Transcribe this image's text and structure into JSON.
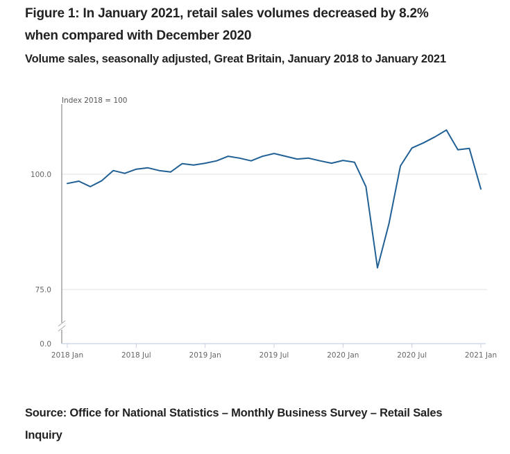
{
  "title": "Figure 1: In January 2021, retail sales volumes decreased by 8.2% when compared with December 2020",
  "subtitle": "Volume sales, seasonally adjusted, Great Britain, January 2018 to January 2021",
  "source": "Source: Office for National Statistics – Monthly Business Survey – Retail Sales Inquiry",
  "chart_data": {
    "type": "line",
    "title": "Figure 1: In January 2021, retail sales volumes decreased by 8.2% when compared with December 2020",
    "subtitle": "Volume sales, seasonally adjusted, Great Britain, January 2018 to January 2021",
    "ylabel": "Index 2018 = 100",
    "xlabel": "",
    "y_axis_break": true,
    "yticks": [
      0.0,
      75.0,
      100.0
    ],
    "ytick_labels": [
      "0.0",
      "75.0",
      "100.0"
    ],
    "ylim_upper_segment": [
      75,
      111
    ],
    "xtick_labels": [
      "2018 Jan",
      "2018 Jul",
      "2019 Jan",
      "2019 Jul",
      "2020 Jan",
      "2020 Jul",
      "2021 Jan"
    ],
    "xtick_month_index": [
      0,
      6,
      12,
      18,
      24,
      30,
      36
    ],
    "grid": "horizontal",
    "legend": "none",
    "line_color": "#206095",
    "series": [
      {
        "name": "Volume sales",
        "x": [
          "2018 Jan",
          "2018 Feb",
          "2018 Mar",
          "2018 Apr",
          "2018 May",
          "2018 Jun",
          "2018 Jul",
          "2018 Aug",
          "2018 Sep",
          "2018 Oct",
          "2018 Nov",
          "2018 Dec",
          "2019 Jan",
          "2019 Feb",
          "2019 Mar",
          "2019 Apr",
          "2019 May",
          "2019 Jun",
          "2019 Jul",
          "2019 Aug",
          "2019 Sep",
          "2019 Oct",
          "2019 Nov",
          "2019 Dec",
          "2020 Jan",
          "2020 Feb",
          "2020 Mar",
          "2020 Apr",
          "2020 May",
          "2020 Jun",
          "2020 Jul",
          "2020 Aug",
          "2020 Sep",
          "2020 Oct",
          "2020 Nov",
          "2020 Dec",
          "2021 Jan"
        ],
        "values": [
          98.0,
          98.5,
          97.3,
          98.6,
          100.8,
          100.2,
          101.1,
          101.4,
          100.8,
          100.5,
          102.3,
          102.0,
          102.4,
          102.9,
          103.9,
          103.5,
          102.9,
          103.9,
          104.5,
          103.9,
          103.3,
          103.5,
          102.9,
          102.4,
          103.0,
          102.6,
          97.3,
          79.7,
          89.3,
          101.8,
          105.7,
          106.8,
          108.1,
          109.6,
          105.3,
          105.6,
          96.8
        ]
      }
    ]
  }
}
